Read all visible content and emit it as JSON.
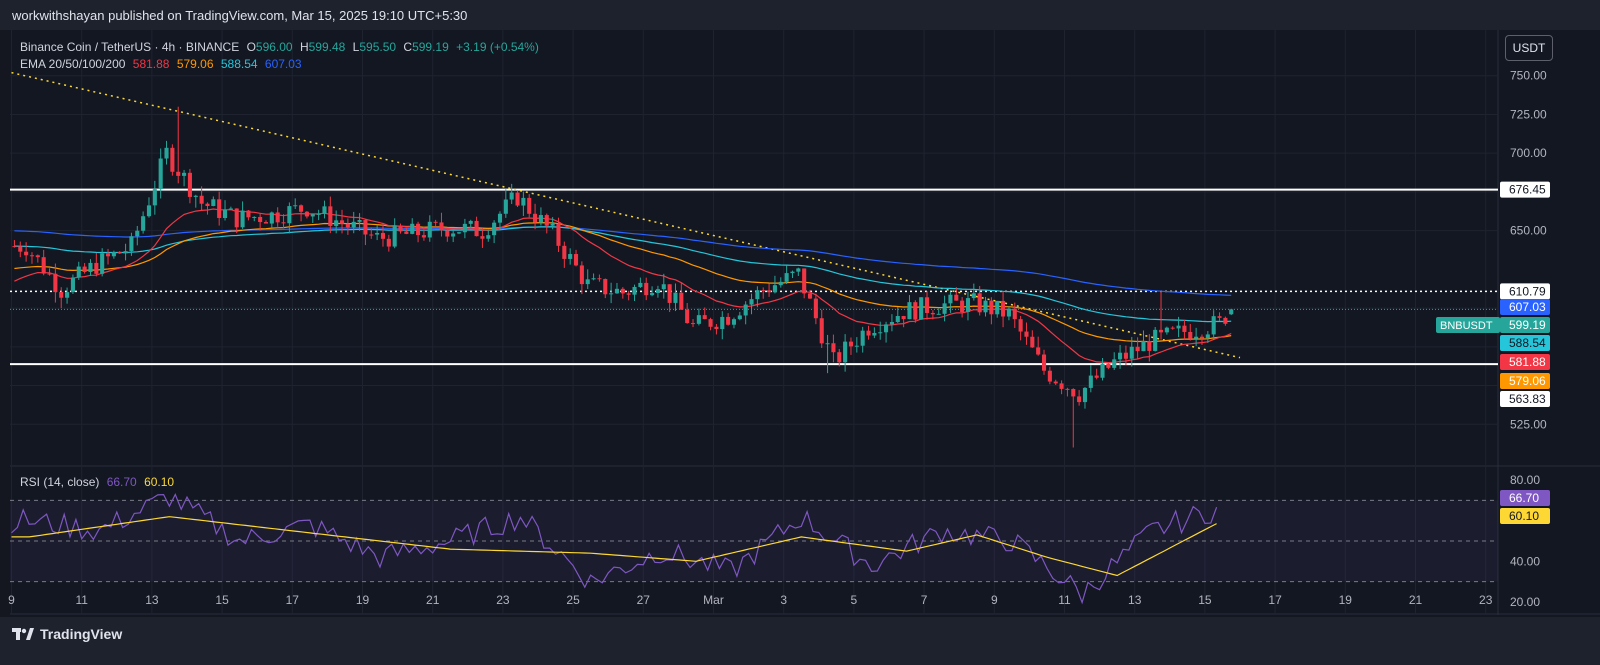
{
  "header": {
    "published": "workwithshayan published on TradingView.com, Mar 15, 2025 19:10 UTC+5:30"
  },
  "footer": {
    "brand": "TradingView"
  },
  "currency_button": "USDT",
  "legend": {
    "symbol": "Binance Coin / TetherUS · 4h · BINANCE",
    "o_label": "O",
    "o": "596.00",
    "h_label": "H",
    "h": "599.48",
    "l_label": "L",
    "l": "595.50",
    "c_label": "C",
    "c": "599.19",
    "change": "+3.19 (+0.54%)",
    "ema_label": "EMA 20/50/100/200",
    "ema20": "581.88",
    "ema50": "579.06",
    "ema100": "588.54",
    "ema200": "607.03",
    "rsi_label": "RSI (14, close)",
    "rsi": "66.70",
    "rsi_ma": "60.10"
  },
  "colors": {
    "up": "#26a69a",
    "down": "#f23645",
    "ema20": "#f23645",
    "ema50": "#ff9800",
    "ema100": "#26c6da",
    "ema200": "#2962ff",
    "rsi": "#7e57c2",
    "rsi_ma": "#fdd835",
    "trendline": "#fdd835"
  },
  "chart_data": [
    {
      "type": "candlestick",
      "symbol": "BNBUSDT",
      "timeframe": "4h",
      "x_ticks": [
        "9",
        "11",
        "13",
        "15",
        "17",
        "19",
        "21",
        "23",
        "25",
        "27",
        "Mar",
        "3",
        "5",
        "7",
        "9",
        "11",
        "13",
        "15",
        "17",
        "19",
        "21",
        "23"
      ],
      "y_ticks": [
        750,
        725,
        700,
        650,
        525
      ],
      "ylim": [
        500,
        775
      ],
      "daily_path": [
        {
          "x": "Feb 9",
          "y": 640
        },
        {
          "x": "Feb 10",
          "y": 612
        },
        {
          "x": "Feb 11",
          "y": 628
        },
        {
          "x": "Feb 12",
          "y": 640
        },
        {
          "x": "Feb 13",
          "y": 700
        },
        {
          "x": "Feb 14",
          "y": 668
        },
        {
          "x": "Feb 15",
          "y": 658
        },
        {
          "x": "Feb 16",
          "y": 660
        },
        {
          "x": "Feb 17",
          "y": 665
        },
        {
          "x": "Feb 18",
          "y": 655
        },
        {
          "x": "Feb 19",
          "y": 645
        },
        {
          "x": "Feb 20",
          "y": 648
        },
        {
          "x": "Feb 21",
          "y": 652
        },
        {
          "x": "Feb 22",
          "y": 650
        },
        {
          "x": "Feb 23",
          "y": 672
        },
        {
          "x": "Feb 24",
          "y": 648
        },
        {
          "x": "Feb 25",
          "y": 615
        },
        {
          "x": "Feb 26",
          "y": 610
        },
        {
          "x": "Feb 27",
          "y": 618
        },
        {
          "x": "Feb 28",
          "y": 588
        },
        {
          "x": "Mar 1",
          "y": 595
        },
        {
          "x": "Mar 2",
          "y": 612
        },
        {
          "x": "Mar 3",
          "y": 622
        },
        {
          "x": "Mar 4",
          "y": 565
        },
        {
          "x": "Mar 5",
          "y": 588
        },
        {
          "x": "Mar 6",
          "y": 598
        },
        {
          "x": "Mar 7",
          "y": 602
        },
        {
          "x": "Mar 8",
          "y": 603
        },
        {
          "x": "Mar 9",
          "y": 596
        },
        {
          "x": "Mar 10",
          "y": 560
        },
        {
          "x": "Mar 11",
          "y": 545
        },
        {
          "x": "Mar 12",
          "y": 565
        },
        {
          "x": "Mar 13",
          "y": 578
        },
        {
          "x": "Mar 14",
          "y": 585
        },
        {
          "x": "Mar 15",
          "y": 590
        },
        {
          "x": "Mar 15 19:10",
          "y": 599.19
        }
      ],
      "levels": [
        {
          "label": "676.45",
          "y": 676.45,
          "style": "solid",
          "color": "#ffffff"
        },
        {
          "label": "610.79",
          "y": 610.79,
          "style": "dotted",
          "color": "#ffffff"
        },
        {
          "label": "563.83",
          "y": 563.83,
          "style": "solid",
          "color": "#ffffff"
        }
      ],
      "last_price": {
        "label": "BNBUSDT",
        "value": "599.19"
      },
      "ema_tags": [
        {
          "value": "607.03",
          "color": "#2962ff"
        },
        {
          "value": "588.54",
          "color": "#26c6da"
        },
        {
          "value": "581.88",
          "color": "#f23645"
        },
        {
          "value": "579.06",
          "color": "#ff9800"
        }
      ],
      "trendline": {
        "from": {
          "x": "Feb 9",
          "y": 752
        },
        "to": {
          "x": "Mar 16",
          "y": 568
        }
      }
    },
    {
      "type": "line",
      "title": "RSI (14, close)",
      "y_ticks": [
        80,
        40,
        20
      ],
      "ylim": [
        15,
        85
      ],
      "bands": [
        70,
        50,
        30
      ],
      "rsi_path": [
        {
          "x": "Feb 9",
          "y": 60
        },
        {
          "x": "Feb 11",
          "y": 55
        },
        {
          "x": "Feb 13",
          "y": 72
        },
        {
          "x": "Feb 15",
          "y": 50
        },
        {
          "x": "Feb 17",
          "y": 58
        },
        {
          "x": "Feb 19",
          "y": 42
        },
        {
          "x": "Feb 21",
          "y": 50
        },
        {
          "x": "Feb 23",
          "y": 62
        },
        {
          "x": "Feb 25",
          "y": 30
        },
        {
          "x": "Feb 27",
          "y": 45
        },
        {
          "x": "Mar 1",
          "y": 35
        },
        {
          "x": "Mar 3",
          "y": 62
        },
        {
          "x": "Mar 5",
          "y": 38
        },
        {
          "x": "Mar 7",
          "y": 55
        },
        {
          "x": "Mar 9",
          "y": 50
        },
        {
          "x": "Mar 11",
          "y": 24
        },
        {
          "x": "Mar 13",
          "y": 55
        },
        {
          "x": "Mar 15",
          "y": 66.7
        }
      ],
      "ma_path": [
        {
          "x": "Feb 9",
          "y": 52
        },
        {
          "x": "Feb 13",
          "y": 62
        },
        {
          "x": "Feb 17",
          "y": 54
        },
        {
          "x": "Feb 21",
          "y": 46
        },
        {
          "x": "Feb 25",
          "y": 44
        },
        {
          "x": "Feb 28",
          "y": 40
        },
        {
          "x": "Mar 3",
          "y": 52
        },
        {
          "x": "Mar 6",
          "y": 45
        },
        {
          "x": "Mar 8",
          "y": 53
        },
        {
          "x": "Mar 10",
          "y": 42
        },
        {
          "x": "Mar 12",
          "y": 33
        },
        {
          "x": "Mar 15",
          "y": 60.1
        }
      ],
      "last_values": [
        {
          "value": "66.70",
          "color": "#7e57c2"
        },
        {
          "value": "60.10",
          "color": "#fdd835"
        }
      ]
    }
  ]
}
